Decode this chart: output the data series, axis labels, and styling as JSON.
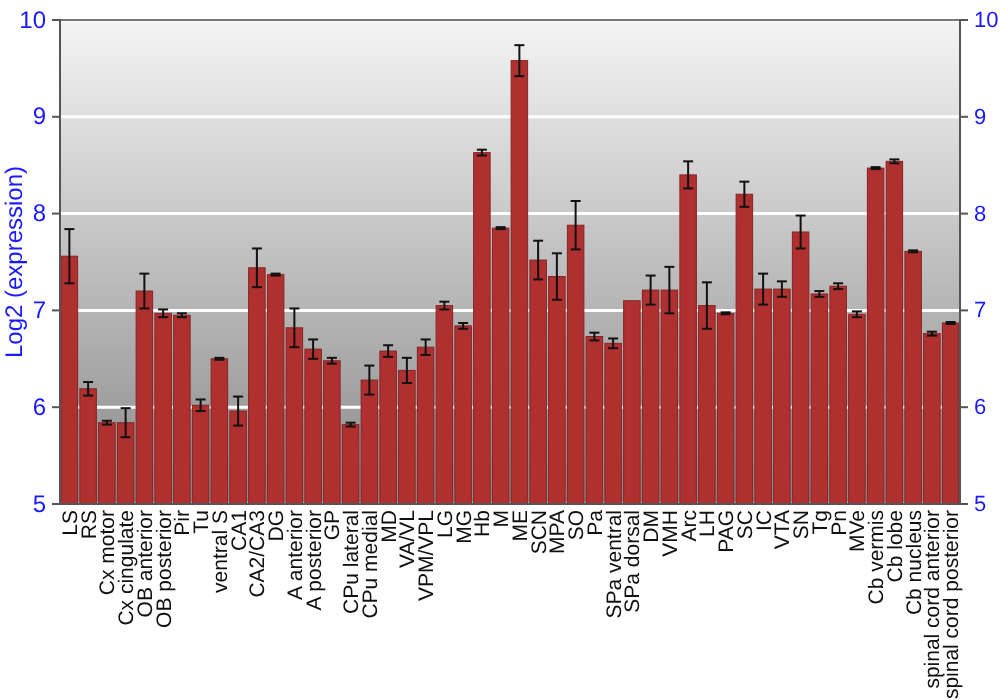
{
  "chart_data": {
    "type": "bar",
    "ylabel": "Log2 (expression)",
    "categories": [
      "LS",
      "RS",
      "Cx motor",
      "Cx cingulate",
      "OB anterior",
      "OB posterior",
      "Pir",
      "Tu",
      "ventral S",
      "CA1",
      "CA2/CA3",
      "DG",
      "A anterior",
      "A posterior",
      "GP",
      "CPu lateral",
      "CPu medial",
      "MD",
      "VA/VL",
      "VPM/VPL",
      "LG",
      "MG",
      "Hb",
      "M",
      "ME",
      "SCN",
      "MPA",
      "SO",
      "Pa",
      "SPa ventral",
      "SPa dorsal",
      "DM",
      "VMH",
      "Arc",
      "LH",
      "PAG",
      "SC",
      "IC",
      "VTA",
      "SN",
      "Tg",
      "Pn",
      "MVe",
      "Cb vermis",
      "Cb lobe",
      "Cb nucleus",
      "spinal cord anterior",
      "spinal cord posterior"
    ],
    "values": [
      7.56,
      6.19,
      5.84,
      5.84,
      7.2,
      6.97,
      6.95,
      6.02,
      6.5,
      5.96,
      7.44,
      7.37,
      6.82,
      6.6,
      6.48,
      5.82,
      6.28,
      6.58,
      6.38,
      6.62,
      7.05,
      6.84,
      8.63,
      7.85,
      9.58,
      7.52,
      7.35,
      7.88,
      6.73,
      6.66,
      7.1,
      7.21,
      7.21,
      8.4,
      7.05,
      6.97,
      8.2,
      7.22,
      7.22,
      7.81,
      7.17,
      7.25,
      6.96,
      8.47,
      8.54,
      7.61,
      6.76,
      6.87
    ],
    "errors": [
      0.28,
      0.07,
      0.02,
      0.15,
      0.18,
      0.04,
      0.02,
      0.06,
      0.01,
      0.15,
      0.2,
      0.01,
      0.2,
      0.1,
      0.03,
      0.02,
      0.15,
      0.06,
      0.13,
      0.08,
      0.04,
      0.03,
      0.03,
      0.01,
      0.16,
      0.2,
      0.24,
      0.25,
      0.04,
      0.05,
      null,
      0.15,
      0.24,
      0.14,
      0.24,
      0.01,
      0.13,
      0.16,
      0.08,
      0.17,
      0.03,
      0.03,
      0.03,
      0.01,
      0.02,
      0.01,
      0.02,
      0.01
    ],
    "color": "#b03030",
    "ylim": [
      5,
      10
    ],
    "yticks": [
      5,
      6,
      7,
      8,
      9,
      10
    ],
    "y2lim": [
      5,
      10
    ],
    "y2ticks": [
      5,
      6,
      7,
      8,
      9,
      10
    ],
    "grid": "y"
  }
}
